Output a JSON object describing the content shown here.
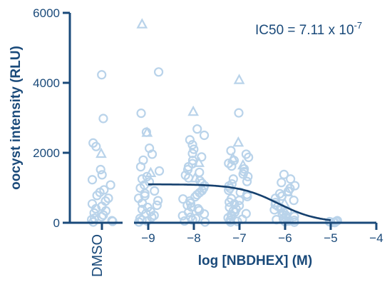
{
  "chart_data": {
    "type": "scatter",
    "ylabel": "oocyst intensity (RLU)",
    "xlabel": "log [NBDHEX] (M)",
    "control_label": "DMSO",
    "annotation": {
      "text": "IC50 = 7.11 x 10",
      "exponent": "-7"
    },
    "ylim": [
      0,
      6000
    ],
    "yticks": [
      0,
      2000,
      4000,
      6000
    ],
    "xlim": [
      -9.15,
      -4
    ],
    "xticks": [
      -9,
      -8,
      -7,
      -6,
      -5,
      -4
    ],
    "xtick_labels": [
      "−9",
      "−8",
      "−7",
      "−6",
      "−5",
      "−4"
    ],
    "colors": {
      "axis": "#1a4a7a",
      "points": "#b9d3ea",
      "curve": "#15406e"
    },
    "groups": [
      {
        "name": "DMSO",
        "x": "DMSO",
        "circles": [
          4230,
          2980,
          2280,
          2180,
          1520,
          1370,
          1230,
          1080,
          940,
          870,
          780,
          700,
          620,
          540,
          470,
          400,
          340,
          280,
          220,
          170,
          130,
          90,
          60,
          40,
          20
        ],
        "triangles": [
          1980
        ]
      },
      {
        "name": "-9",
        "x": -9,
        "circles": [
          4310,
          3130,
          2590,
          2130,
          1960,
          1790,
          1600,
          1480,
          1320,
          1250,
          1170,
          1080,
          990,
          910,
          840,
          770,
          700,
          630,
          560,
          500,
          440,
          380,
          320,
          260,
          210,
          160,
          120,
          80,
          50,
          20
        ],
        "triangles": [
          5680,
          2580,
          1430
        ]
      },
      {
        "name": "-8",
        "x": -8,
        "circles": [
          2680,
          2500,
          2370,
          2230,
          2100,
          1980,
          1880,
          1780,
          1690,
          1600,
          1520,
          1440,
          1360,
          1280,
          1200,
          1130,
          1060,
          990,
          920,
          860,
          800,
          740,
          680,
          620,
          560,
          500,
          450,
          400,
          350,
          300,
          250,
          200,
          160,
          120,
          80,
          50,
          20
        ],
        "triangles": [
          3180,
          1720,
          1280
        ]
      },
      {
        "name": "-7",
        "x": -7,
        "circles": [
          3140,
          2060,
          1960,
          1870,
          1780,
          1700,
          1620,
          1540,
          1460,
          1390,
          1320,
          1250,
          1180,
          1110,
          1050,
          990,
          930,
          870,
          810,
          750,
          690,
          640,
          590,
          540,
          490,
          440,
          390,
          340,
          300,
          260,
          220,
          180,
          140,
          100,
          70,
          40,
          20
        ],
        "triangles": [
          4090,
          2300,
          1850,
          1650
        ]
      },
      {
        "name": "-6",
        "x": -6,
        "circles": [
          1380,
          1250,
          1150,
          1060,
          980,
          900,
          830,
          760,
          700,
          640,
          580,
          520,
          470,
          420,
          370,
          330,
          290,
          250,
          210,
          180,
          150,
          120,
          90,
          70,
          50,
          30,
          15
        ],
        "triangles": [
          880,
          560
        ]
      },
      {
        "name": "-5",
        "x": -5,
        "circles": [
          60,
          40,
          30,
          20,
          10,
          5
        ],
        "triangles": []
      }
    ],
    "fit": {
      "type": "dose-response",
      "top": 1100,
      "bottom": 0,
      "logIC50": -6.148,
      "hill": -1.0,
      "x_range": [
        -9,
        -5
      ]
    }
  }
}
